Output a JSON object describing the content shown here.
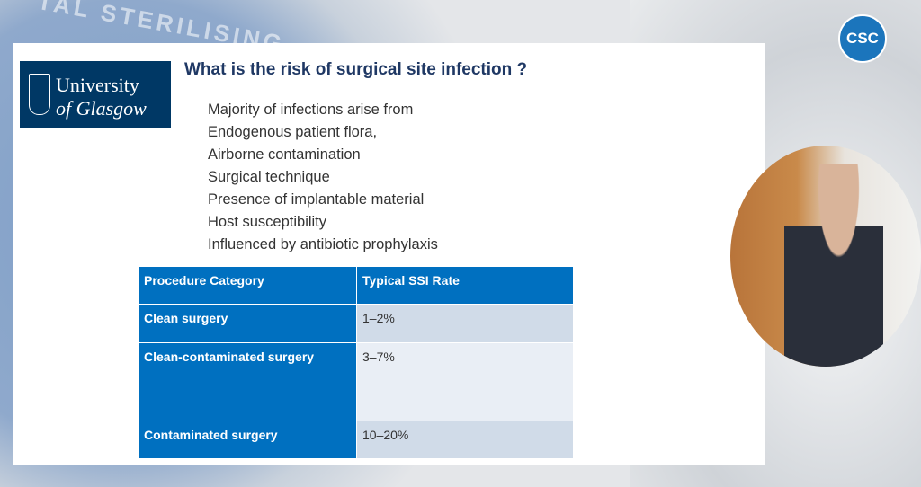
{
  "background": {
    "emblem_text": "TAL STERILISING"
  },
  "badge": "CSC",
  "logo": {
    "line1": "University",
    "line2": "of Glasgow"
  },
  "header": {
    "title": "What is the risk of surgical site infection ?"
  },
  "bullets": [
    "Majority of infections arise from",
    "Endogenous patient flora,",
    "Airborne contamination",
    "Surgical technique",
    "Presence of implantable material",
    "Host susceptibility",
    "Influenced by antibiotic prophylaxis"
  ],
  "table": {
    "header": [
      "Procedure Category",
      "Typical SSI Rate"
    ],
    "rows": [
      [
        "Clean surgery",
        "1–2%"
      ],
      [
        "Clean-contaminated surgery",
        "3–7%"
      ],
      [
        "Contaminated surgery",
        "10–20%"
      ]
    ]
  }
}
